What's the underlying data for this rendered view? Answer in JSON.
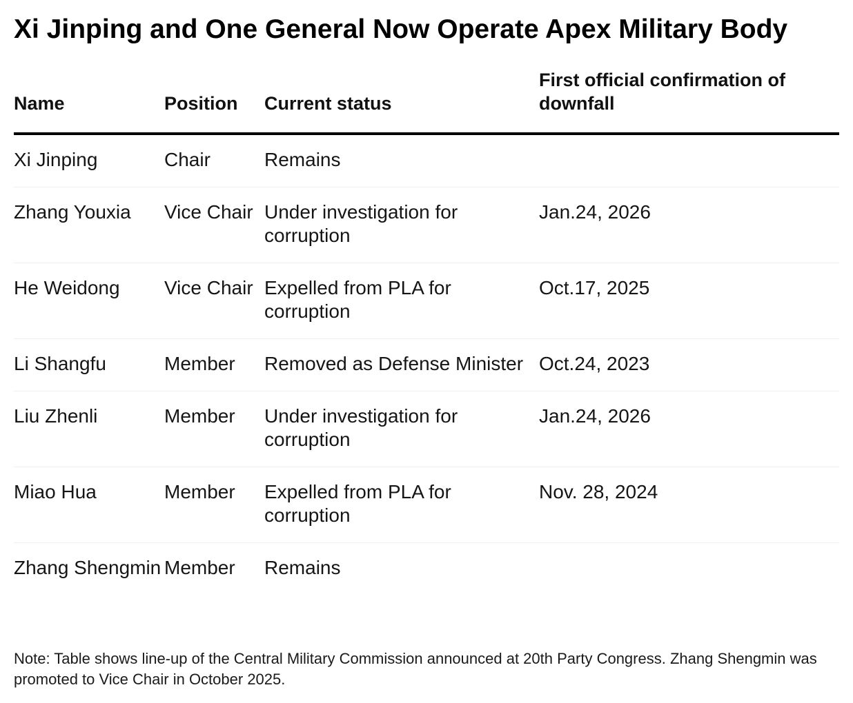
{
  "title": "Xi Jinping and One General Now Operate Apex Military Body",
  "table": {
    "headers": {
      "name": "Name",
      "position": "Position",
      "status": "Current status",
      "date": "First official confirmation of downfall"
    },
    "rows": [
      {
        "name": "Xi Jinping",
        "position": "Chair",
        "status": "Remains",
        "date": ""
      },
      {
        "name": "Zhang Youxia",
        "position": "Vice Chair",
        "status": "Under investigation for corruption",
        "date": "Jan.24, 2026"
      },
      {
        "name": "He Weidong",
        "position": "Vice Chair",
        "status": "Expelled from PLA for corruption",
        "date": "Oct.17, 2025"
      },
      {
        "name": "Li Shangfu",
        "position": "Member",
        "status": "Removed as Defense Minister",
        "date": "Oct.24, 2023"
      },
      {
        "name": "Liu Zhenli",
        "position": "Member",
        "status": "Under investigation for corruption",
        "date": "Jan.24, 2026"
      },
      {
        "name": "Miao Hua",
        "position": "Member",
        "status": "Expelled from PLA for corruption",
        "date": "Nov. 28, 2024"
      },
      {
        "name": "Zhang Shengmin",
        "position": "Member",
        "status": "Remains",
        "date": ""
      }
    ]
  },
  "note": "Note: Table shows line-up of the Central Military Commission announced at 20th Party Congress. Zhang Shengmin was promoted to Vice Chair in October 2025."
}
